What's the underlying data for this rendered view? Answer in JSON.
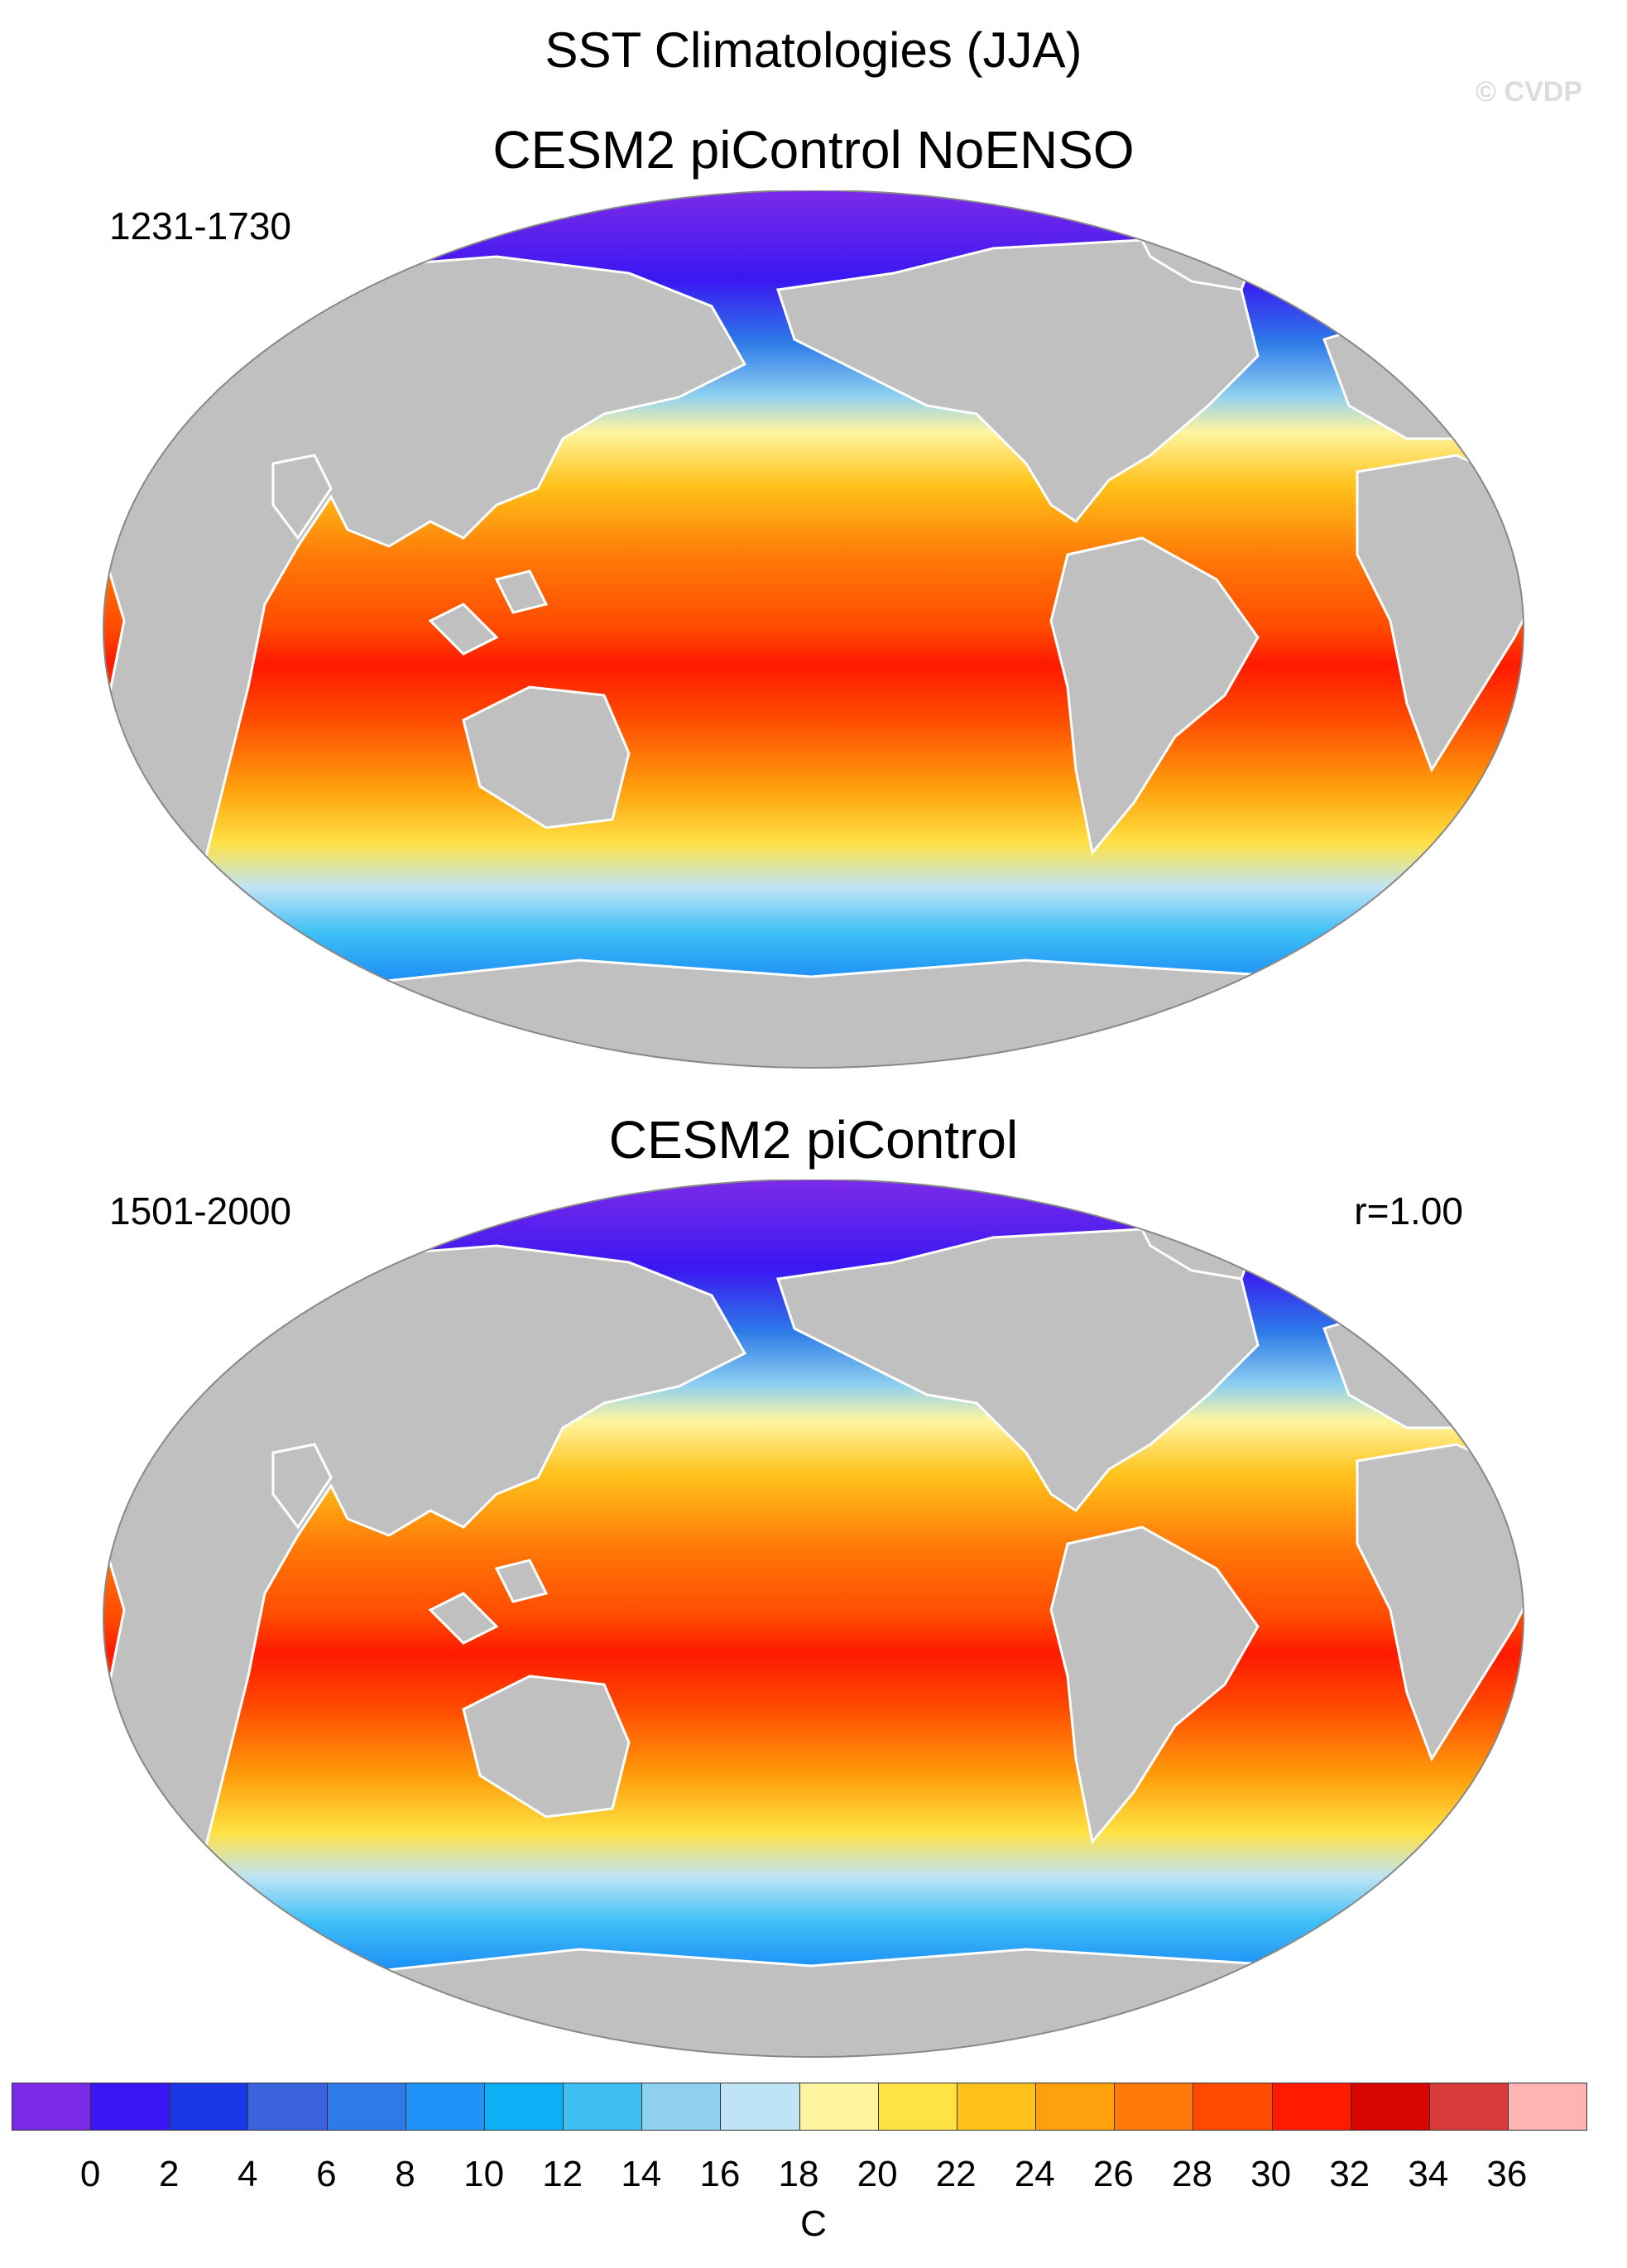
{
  "title": "SST Climatologies (JJA)",
  "credit": "© CVDP",
  "panels": [
    {
      "title": "CESM2 piControl NoENSO",
      "period": "1231-1730",
      "stat": ""
    },
    {
      "title": "CESM2 piControl",
      "period": "1501-2000",
      "stat": "r=1.00"
    }
  ],
  "colorbar": {
    "units": "C",
    "labels": [
      "0",
      "2",
      "4",
      "6",
      "8",
      "10",
      "12",
      "14",
      "16",
      "18",
      "20",
      "22",
      "24",
      "26",
      "28",
      "30",
      "32",
      "34",
      "36"
    ],
    "colors": [
      "#7b2be8",
      "#3a17f2",
      "#1a36e6",
      "#3a63dd",
      "#2d7ae8",
      "#1f93f7",
      "#0db0f7",
      "#3fc0f5",
      "#8fd0f0",
      "#bfe4f6",
      "#fff5a0",
      "#ffe244",
      "#ffc21a",
      "#ffa00c",
      "#ff7a08",
      "#ff4a00",
      "#ff1a00",
      "#d80400",
      "#d83a3a",
      "#ffb3b3"
    ]
  },
  "chart_data": {
    "type": "heatmap",
    "title": "SST Climatologies (JJA)",
    "variable": "SST",
    "season": "JJA",
    "units": "C",
    "levels": [
      0,
      2,
      4,
      6,
      8,
      10,
      12,
      14,
      16,
      18,
      20,
      22,
      24,
      26,
      28,
      30,
      32,
      34,
      36
    ],
    "maps": [
      {
        "name": "CESM2 piControl NoENSO",
        "period": "1231-1730"
      },
      {
        "name": "CESM2 piControl",
        "period": "1501-2000",
        "pattern_correlation": "r=1.00"
      }
    ]
  },
  "colors": {
    "land": "#c0c0c0",
    "background": "#ffffff"
  }
}
